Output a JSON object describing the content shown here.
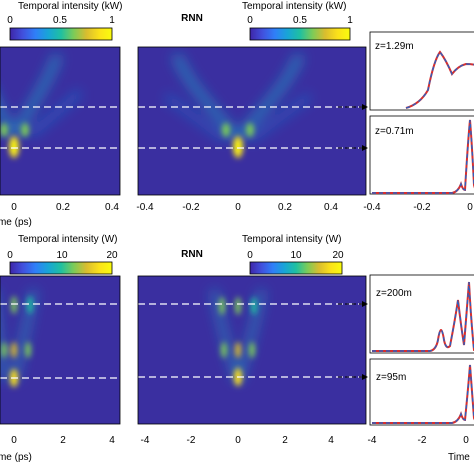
{
  "colormap": [
    "#3e26a8",
    "#4150dd",
    "#2f7ff8",
    "#18a5d6",
    "#1fc0a1",
    "#7ccb58",
    "#d9bd2f",
    "#fbe11a",
    "#f9fb0e"
  ],
  "colors": {
    "background": "#3a2fa0",
    "ridge_dash": "#ffffff",
    "line_red": "#d62f2f",
    "line_blue": "#2e5fbf"
  },
  "top": {
    "colorbar_left": {
      "label": "Temporal intensity (kW)",
      "ticks": [
        "0",
        "0.5",
        "1"
      ]
    },
    "colorbar_right": {
      "label": "Temporal intensity (kW)",
      "ticks": [
        "0",
        "0.5",
        "1"
      ]
    },
    "rnn_label": "RNN",
    "xlabel": "Time (ps)",
    "left_ticks": [
      "0",
      "0.2",
      "0.4"
    ],
    "mid_ticks": [
      "-0.4",
      "-0.2",
      "0",
      "0.2",
      "0.4"
    ],
    "right_ticks": [
      "-0.4",
      "-0.2",
      "0"
    ],
    "annot_upper": "z=1.29m",
    "annot_lower": "z=0.71m"
  },
  "bottom": {
    "colorbar_left": {
      "label": "Temporal intensity (W)",
      "ticks": [
        "0",
        "10",
        "20"
      ]
    },
    "colorbar_right": {
      "label": "Temporal intensity (W)",
      "ticks": [
        "0",
        "10",
        "20"
      ]
    },
    "rnn_label": "RNN",
    "xlabel": "Time (ps)",
    "xlabel_right": "Time",
    "left_ticks": [
      "0",
      "2",
      "4"
    ],
    "mid_ticks": [
      "-4",
      "-2",
      "0",
      "2",
      "4"
    ],
    "right_ticks": [
      "-4",
      "-2",
      "0"
    ],
    "annot_upper": "z=200m",
    "annot_lower": "z=95m"
  }
}
